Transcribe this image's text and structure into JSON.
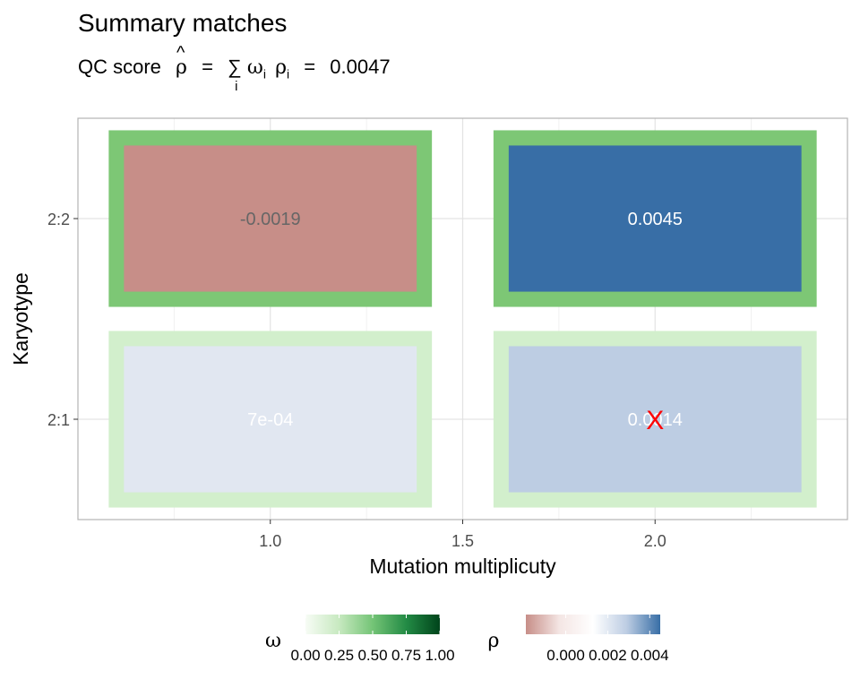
{
  "title": "Summary matches",
  "subtitle": {
    "prefix": "QC score",
    "rho_hat": "ρ",
    "hat": "^",
    "eq1": "=",
    "sum": "∑",
    "sum_index": "i",
    "omega": "ω",
    "omega_sub": "i",
    "rho": "ρ",
    "rho_sub": "i",
    "eq2": "=",
    "value": "0.0047"
  },
  "chart_data": {
    "type": "heatmap",
    "xlabel": "Mutation multiplicuty",
    "ylabel": "Karyotype",
    "x_ticks": [
      "1.0",
      "1.5",
      "2.0"
    ],
    "x_tick_values": [
      1.0,
      1.5,
      2.0
    ],
    "xlim": [
      0.5,
      2.5
    ],
    "y_categories": [
      "2:1",
      "2:2"
    ],
    "grid": true,
    "cells": [
      {
        "x": 1.0,
        "y": "2:2",
        "rho": -0.0019,
        "label": "-0.0019",
        "omega": 0.55,
        "fill": "#c78e88",
        "border": "#7dc775",
        "label_color": "#666666"
      },
      {
        "x": 2.0,
        "y": "2:2",
        "rho": 0.0045,
        "label": "0.0045",
        "omega": 0.55,
        "fill": "#386ea6",
        "border": "#7dc775",
        "label_color": "#ffffff"
      },
      {
        "x": 1.0,
        "y": "2:1",
        "rho": 0.0007,
        "label": "7e-04",
        "omega": 0.2,
        "fill": "#e1e7f1",
        "border": "#d2efcc",
        "label_color": "#ffffff"
      },
      {
        "x": 2.0,
        "y": "2:1",
        "rho": 0.0014,
        "label": "0.0014",
        "omega": 0.2,
        "fill": "#bdcde3",
        "border": "#d2efcc",
        "label_color": "#ffffff"
      }
    ],
    "marker": {
      "x": 2.0,
      "y": "2:1",
      "symbol": "X",
      "color": "#ff0000"
    },
    "legends": [
      {
        "title": "ω",
        "ticks": [
          "0.00",
          "0.25",
          "0.50",
          "0.75",
          "1.00"
        ],
        "tick_values": [
          0,
          0.25,
          0.5,
          0.75,
          1.0
        ],
        "range": [
          0,
          1.0
        ],
        "colors": [
          "#f7fcf5",
          "#c7e9c0",
          "#74c476",
          "#238b45",
          "#00441b"
        ]
      },
      {
        "title": "ρ",
        "ticks": [
          "0.000",
          "0.002",
          "0.004"
        ],
        "tick_values": [
          0,
          0.002,
          0.004
        ],
        "range": [
          -0.0019,
          0.0045
        ],
        "colors": [
          "#c78e88",
          "#f4e6e4",
          "#ffffff",
          "#bdcde3",
          "#386ea6"
        ]
      }
    ],
    "legend_position": "bottom"
  }
}
